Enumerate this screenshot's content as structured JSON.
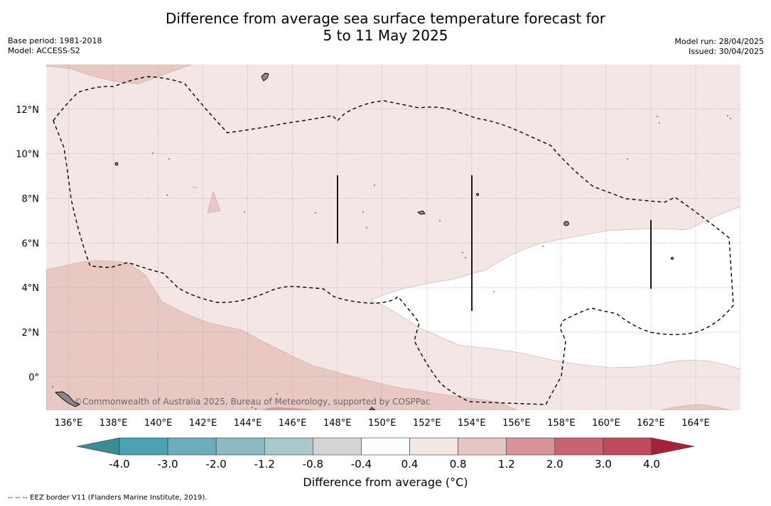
{
  "title_line1": "Difference from average sea surface temperature forecast for",
  "title_line2": "5 to 11 May 2025",
  "base_period": "Base period: 1981-2018",
  "model": "Model: ACCESS-S2",
  "model_run": "Model run: 28/04/2025",
  "issued": "Issued: 30/04/2025",
  "copyright": "©Commonwealth of Australia 2025, Bureau of Meteorology, supported by COSPPac",
  "footer": "--  --  -- EEZ border V11 (Flanders Marine Institute, 2019).",
  "map": {
    "lon_ticks": [
      "136°E",
      "138°E",
      "140°E",
      "142°E",
      "144°E",
      "146°E",
      "148°E",
      "150°E",
      "152°E",
      "154°E",
      "156°E",
      "158°E",
      "160°E",
      "162°E",
      "164°E"
    ],
    "lat_ticks": [
      "12°N",
      "10°N",
      "8°N",
      "6°N",
      "4°N",
      "2°N",
      "0°"
    ],
    "lon_range": [
      135,
      166
    ],
    "lat_range": [
      -1.5,
      14
    ],
    "colors": {
      "anomaly_0_4_to_0_8": "#f4e6e4",
      "anomaly_0_8_to_1_2": "#e8c8c2",
      "anomaly_1_2_to_2_0": "#d5959a",
      "anomaly_neg0_4_to_0_4": "#ffffff"
    }
  },
  "colorbar": {
    "title": "Difference from average (°C)",
    "tick_labels": [
      "-4.0",
      "-3.0",
      "-2.0",
      "-1.2",
      "-0.8",
      "-0.4",
      "0.4",
      "0.8",
      "1.2",
      "2.0",
      "3.0",
      "4.0"
    ],
    "colors": [
      "#3b8c95",
      "#4aa2b2",
      "#6aaebb",
      "#8bbac2",
      "#a8c9ca",
      "#d4d4d4",
      "#ffffff",
      "#f4e6e4",
      "#e6c6c0",
      "#d79498",
      "#c7646d",
      "#c04a58",
      "#a8213b"
    ]
  }
}
